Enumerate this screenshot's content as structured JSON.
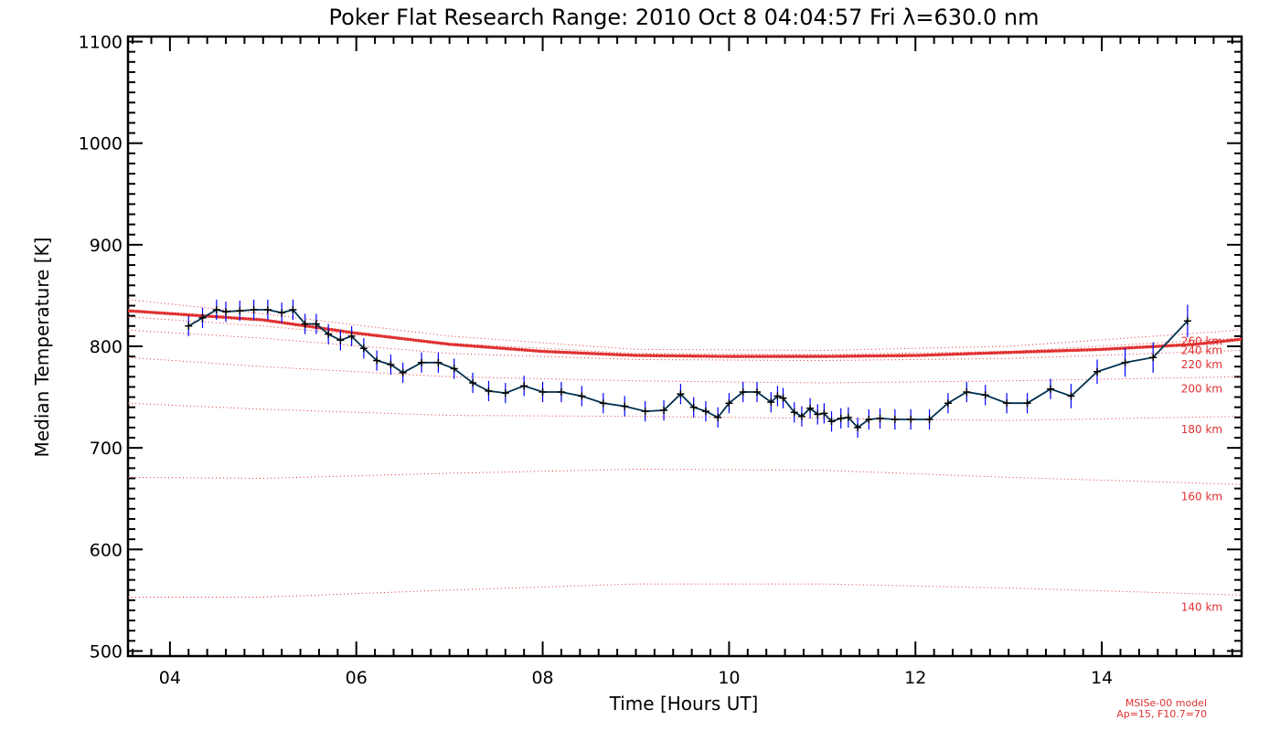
{
  "chart_data": {
    "type": "line",
    "title": "Poker Flat Research Range: 2010 Oct  8 04:04:57 Fri λ=630.0 nm",
    "xlabel": "Time [Hours UT]",
    "ylabel": "Median Temperature [K]",
    "xlim": [
      3.55,
      15.5
    ],
    "ylim": [
      495,
      1105
    ],
    "x_ticks": [
      {
        "value": 4,
        "label": "04"
      },
      {
        "value": 6,
        "label": "06"
      },
      {
        "value": 8,
        "label": "08"
      },
      {
        "value": 10,
        "label": "10"
      },
      {
        "value": 12,
        "label": "12"
      },
      {
        "value": 14,
        "label": "14"
      }
    ],
    "y_ticks": [
      500,
      600,
      700,
      800,
      900,
      1000,
      1100
    ],
    "grid": false,
    "series": [
      {
        "color": "#000000",
        "line_color": "#003050",
        "error_color": "#0000ff",
        "x": [
          4.2,
          4.35,
          4.5,
          4.6,
          4.75,
          4.9,
          5.05,
          5.2,
          5.32,
          5.45,
          5.57,
          5.7,
          5.83,
          5.95,
          6.08,
          6.22,
          6.37,
          6.5,
          6.7,
          6.88,
          7.05,
          7.25,
          7.42,
          7.6,
          7.8,
          8.0,
          8.2,
          8.42,
          8.65,
          8.88,
          9.1,
          9.3,
          9.48,
          9.62,
          9.75,
          9.88,
          10.0,
          10.15,
          10.3,
          10.45,
          10.52,
          10.58,
          10.7,
          10.78,
          10.87,
          10.95,
          11.02,
          11.1,
          11.2,
          11.28,
          11.38,
          11.5,
          11.62,
          11.78,
          11.95,
          12.15,
          12.35,
          12.55,
          12.75,
          12.98,
          13.2,
          13.45,
          13.67,
          13.95,
          14.25,
          14.55,
          14.92
        ],
        "y": [
          820,
          828,
          836,
          834,
          835,
          836,
          836,
          833,
          836,
          822,
          822,
          812,
          806,
          810,
          798,
          786,
          782,
          774,
          784,
          784,
          778,
          764,
          756,
          754,
          761,
          755,
          755,
          751,
          744,
          741,
          736,
          737,
          753,
          740,
          736,
          730,
          744,
          755,
          755,
          745,
          751,
          749,
          735,
          731,
          739,
          733,
          734,
          726,
          729,
          730,
          720,
          728,
          729,
          728,
          728,
          728,
          744,
          755,
          752,
          744,
          744,
          758,
          751,
          775,
          784,
          789,
          825
        ],
        "errors": [
          10,
          10,
          10,
          10,
          10,
          10,
          10,
          10,
          10,
          10,
          10,
          10,
          10,
          10,
          10,
          10,
          10,
          10,
          10,
          10,
          10,
          10,
          10,
          10,
          10,
          10,
          10,
          10,
          10,
          10,
          10,
          10,
          10,
          10,
          10,
          10,
          10,
          10,
          10,
          10,
          10,
          10,
          10,
          10,
          10,
          10,
          10,
          10,
          10,
          10,
          10,
          10,
          10,
          10,
          10,
          10,
          10,
          10,
          10,
          10,
          10,
          10,
          12,
          12,
          14,
          15,
          16
        ]
      }
    ],
    "model": {
      "color": "#e03030",
      "main_curve": {
        "x": [
          3.55,
          5.0,
          6.0,
          7.0,
          8.0,
          9.0,
          10.0,
          11.0,
          12.0,
          13.0,
          14.0,
          15.0,
          15.5
        ],
        "y": [
          835,
          826,
          813,
          802,
          795,
          791,
          790,
          790,
          791,
          794,
          797,
          802,
          807
        ]
      },
      "altitudes": [
        {
          "label": "260 km",
          "label_x": 14.85,
          "label_y": 805,
          "x": [
            3.55,
            5.0,
            7.0,
            9.0,
            11.0,
            13.0,
            15.5
          ],
          "y": [
            846,
            832,
            810,
            797,
            796,
            800,
            816
          ]
        },
        {
          "label": "240 km",
          "label_x": 14.85,
          "label_y": 796,
          "x": [
            3.55,
            5.0,
            7.0,
            9.0,
            11.0,
            13.0,
            15.5
          ],
          "y": [
            829,
            820,
            803,
            793,
            792,
            795,
            808
          ]
        },
        {
          "label": "220 km",
          "label_x": 14.85,
          "label_y": 782,
          "x": [
            3.55,
            5.0,
            7.0,
            9.0,
            11.0,
            13.0,
            15.5
          ],
          "y": [
            816,
            808,
            793,
            787,
            786,
            788,
            796
          ]
        },
        {
          "label": "200 km",
          "label_x": 14.85,
          "label_y": 758,
          "x": [
            3.55,
            5.0,
            7.0,
            9.0,
            11.0,
            13.0,
            15.5
          ],
          "y": [
            789,
            780,
            770,
            766,
            764,
            766,
            770
          ]
        },
        {
          "label": "180 km",
          "label_x": 14.85,
          "label_y": 718,
          "x": [
            3.55,
            5.0,
            7.0,
            9.0,
            11.0,
            13.0,
            15.5
          ],
          "y": [
            744,
            738,
            732,
            731,
            729,
            727,
            731
          ]
        },
        {
          "label": "160 km",
          "label_x": 14.85,
          "label_y": 652,
          "x": [
            3.55,
            5.0,
            7.0,
            9.0,
            11.0,
            13.0,
            15.5
          ],
          "y": [
            671,
            670,
            675,
            679,
            678,
            671,
            664
          ]
        },
        {
          "label": "140 km",
          "label_x": 14.85,
          "label_y": 543,
          "x": [
            3.55,
            5.0,
            7.0,
            9.0,
            11.0,
            13.0,
            15.5
          ],
          "y": [
            553,
            553,
            560,
            566,
            566,
            562,
            555
          ]
        }
      ],
      "note_line1": "MSISe-00 model",
      "note_line2": "Ap=15, F10.7=70"
    }
  }
}
